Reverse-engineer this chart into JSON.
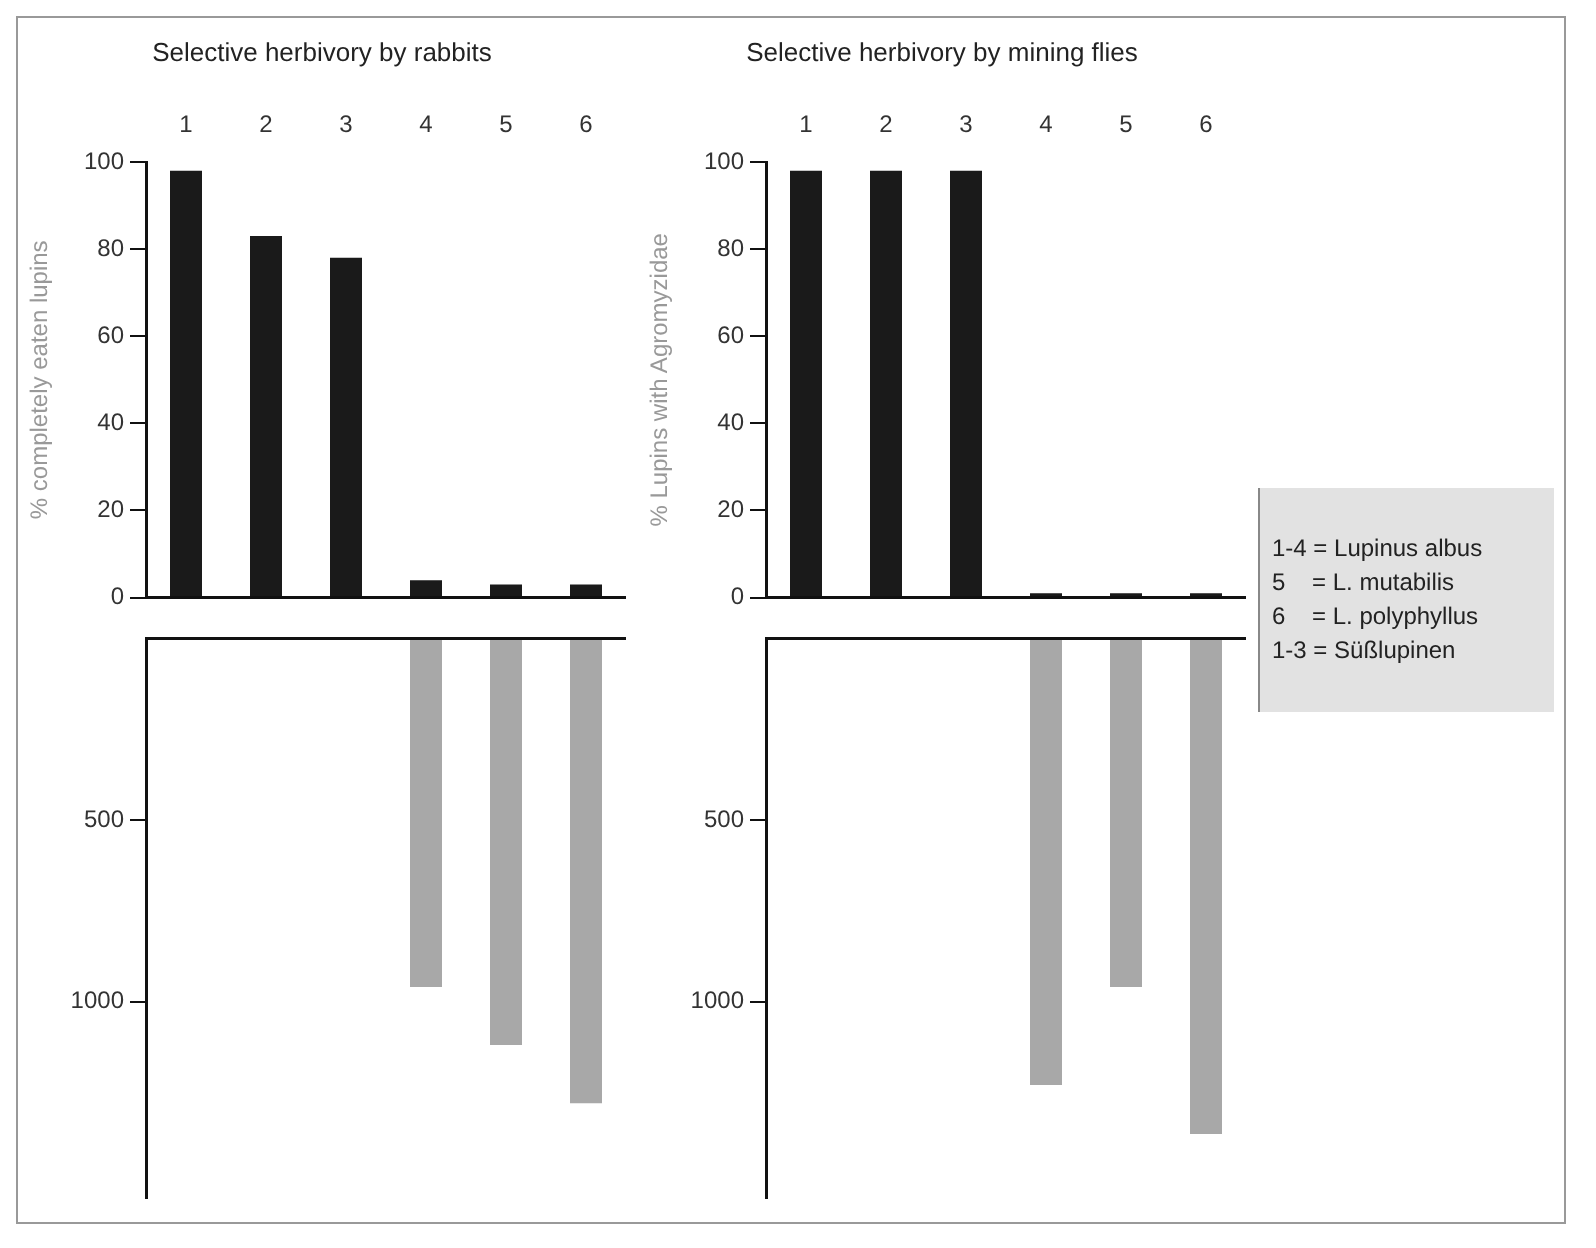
{
  "chart_data": [
    {
      "type": "bar",
      "title": "Selective herbivory by rabbits",
      "ylabel": "% completely eaten lupins",
      "categories": [
        "1",
        "2",
        "3",
        "4",
        "5",
        "6"
      ],
      "ylim": [
        0,
        100
      ],
      "yticks": [
        0,
        20,
        40,
        60,
        80,
        100
      ],
      "legend": false,
      "series": [
        {
          "color": "#1a1a1a",
          "values": [
            98,
            83,
            78,
            4,
            3,
            3
          ]
        }
      ]
    },
    {
      "type": "bar",
      "categories": [
        "1",
        "2",
        "3",
        "4",
        "5",
        "6"
      ],
      "ylim": [
        1540,
        0
      ],
      "yticks": [
        500,
        1000
      ],
      "tick_labels": "y",
      "legend": false,
      "series": [
        {
          "color": "#a8a8a8",
          "values": [
            null,
            null,
            null,
            960,
            1120,
            1280
          ]
        }
      ]
    },
    {
      "type": "bar",
      "title": "Selective herbivory by mining flies",
      "ylabel": "% Lupins with Agromyzidae",
      "categories": [
        "1",
        "2",
        "3",
        "4",
        "5",
        "6"
      ],
      "ylim": [
        0,
        100
      ],
      "yticks": [
        0,
        20,
        40,
        60,
        80,
        100
      ],
      "legend": false,
      "series": [
        {
          "color": "#1a1a1a",
          "values": [
            98,
            98,
            98,
            1,
            1,
            1
          ]
        }
      ]
    },
    {
      "type": "bar",
      "categories": [
        "1",
        "2",
        "3",
        "4",
        "5",
        "6"
      ],
      "ylim": [
        1540,
        0
      ],
      "yticks": [
        500,
        1000
      ],
      "tick_labels": "y",
      "legend": false,
      "series": [
        {
          "color": "#a8a8a8",
          "values": [
            null,
            null,
            null,
            1230,
            960,
            1365
          ]
        }
      ]
    },
    {
      "type": "other",
      "annotations": [
        "1-4 = Lupinus albus",
        "5    = L. mutabilis",
        "6    = L. polyphyllus",
        "1-3 = Süßlupinen"
      ]
    }
  ]
}
